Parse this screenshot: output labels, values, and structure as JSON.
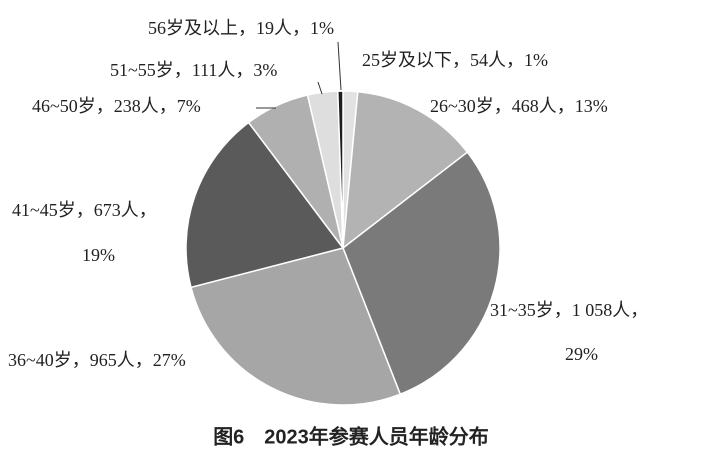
{
  "chart_data": {
    "type": "pie",
    "title": "图6　2023年参赛人员年龄分布",
    "labels": [
      [
        "25岁及以下，54人，1%"
      ],
      [
        "26~30岁，468人，13%"
      ],
      [
        "31~35岁，1 058人，",
        "29%"
      ],
      [
        "36~40岁，965人，27%"
      ],
      [
        "41~45岁，673人，",
        "19%"
      ],
      [
        "46~50岁，238人，7%"
      ],
      [
        "51~55岁，111人，3%"
      ],
      [
        "56岁及以上，19人，1%"
      ]
    ],
    "values": [
      54,
      468,
      1058,
      965,
      673,
      238,
      111,
      19
    ],
    "percents": [
      1,
      13,
      29,
      27,
      19,
      7,
      3,
      1
    ],
    "colors": [
      "#e2e2e2",
      "#b3b3b3",
      "#7a7a7a",
      "#a6a6a6",
      "#5a5a5a",
      "#b0b0b0",
      "#dedede",
      "#1e1e1e"
    ]
  }
}
